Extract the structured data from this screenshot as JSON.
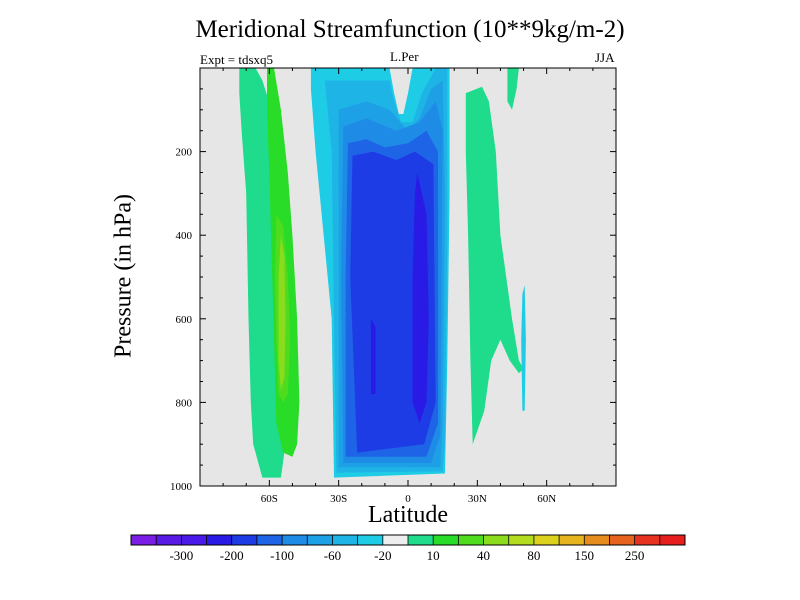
{
  "chart_data": {
    "type": "heatmap",
    "title": "Meridional Streamfunction (10**9kg/m-2)",
    "subtitle_left": "Expt = tdsxq5",
    "subtitle_center": "L.Per",
    "subtitle_right": "JJA",
    "xlabel": "Latitude",
    "ylabel": "Pressure (in hPa)",
    "xlim": [
      -90,
      90
    ],
    "ylim": [
      1000,
      0
    ],
    "x_ticks": [
      {
        "value": -60,
        "label": "60S"
      },
      {
        "value": -30,
        "label": "30S"
      },
      {
        "value": 0,
        "label": "0"
      },
      {
        "value": 30,
        "label": "30N"
      },
      {
        "value": 60,
        "label": "60N"
      }
    ],
    "y_ticks": [
      {
        "value": 200,
        "label": "200"
      },
      {
        "value": 400,
        "label": "400"
      },
      {
        "value": 600,
        "label": "600"
      },
      {
        "value": 800,
        "label": "800"
      },
      {
        "value": 1000,
        "label": "1000"
      }
    ],
    "background_color": "#e6e6e6",
    "colorbar": {
      "colors": [
        "#7a1ee6",
        "#5a1ae6",
        "#4a1ae8",
        "#2a1ae6",
        "#1e3ce6",
        "#1e64e6",
        "#1e8ce6",
        "#1ea0e6",
        "#1eb4e6",
        "#1ecce6",
        "#eeeeee",
        "#1edc8c",
        "#28dc28",
        "#50dc1e",
        "#8cdc1e",
        "#b4dc1e",
        "#dcd21e",
        "#e6b41e",
        "#e68c1e",
        "#e6641e",
        "#e6321e",
        "#e61e1e"
      ],
      "labels": [
        {
          "after_index": 1,
          "label": "-300"
        },
        {
          "after_index": 3,
          "label": "-200"
        },
        {
          "after_index": 5,
          "label": "-100"
        },
        {
          "after_index": 7,
          "label": "-60"
        },
        {
          "after_index": 9,
          "label": "-20"
        },
        {
          "after_index": 11,
          "label": "10"
        },
        {
          "after_index": 13,
          "label": "40"
        },
        {
          "after_index": 15,
          "label": "80"
        },
        {
          "after_index": 17,
          "label": "150"
        },
        {
          "after_index": 19,
          "label": "250"
        }
      ]
    },
    "contours": [
      {
        "name": "sh-cell-outer",
        "color": "#1edc8c",
        "points": [
          [
            -73,
            0
          ],
          [
            -66,
            0
          ],
          [
            -63,
            30
          ],
          [
            -59,
            100
          ],
          [
            -55,
            300
          ],
          [
            -53,
            500
          ],
          [
            -52,
            700
          ],
          [
            -53,
            900
          ],
          [
            -55,
            980
          ],
          [
            -63,
            980
          ],
          [
            -67,
            900
          ],
          [
            -68,
            800
          ],
          [
            -69,
            600
          ],
          [
            -70,
            300
          ],
          [
            -72,
            150
          ],
          [
            -73,
            60
          ]
        ]
      },
      {
        "name": "sh-cell-mid",
        "color": "#28dc28",
        "points": [
          [
            -61,
            0
          ],
          [
            -58,
            0
          ],
          [
            -55,
            100
          ],
          [
            -52,
            250
          ],
          [
            -50,
            400
          ],
          [
            -48,
            600
          ],
          [
            -47,
            800
          ],
          [
            -48,
            900
          ],
          [
            -50,
            930
          ],
          [
            -54,
            920
          ],
          [
            -57,
            850
          ],
          [
            -58,
            650
          ],
          [
            -59,
            450
          ],
          [
            -60,
            250
          ],
          [
            -61,
            100
          ]
        ]
      },
      {
        "name": "sh-cell-inner",
        "color": "#50dc1e",
        "points": [
          [
            -57,
            350
          ],
          [
            -54,
            380
          ],
          [
            -52,
            500
          ],
          [
            -51,
            650
          ],
          [
            -52,
            780
          ],
          [
            -54,
            800
          ],
          [
            -56,
            780
          ],
          [
            -57,
            650
          ],
          [
            -57.5,
            500
          ]
        ]
      },
      {
        "name": "sh-cell-core",
        "color": "#8cdc1e",
        "points": [
          [
            -55,
            400
          ],
          [
            -53.5,
            450
          ],
          [
            -53,
            600
          ],
          [
            -53.5,
            740
          ],
          [
            -55,
            770
          ],
          [
            -56,
            700
          ],
          [
            -56,
            500
          ]
        ]
      },
      {
        "name": "nh-cell-band",
        "color": "#1edc8c",
        "points": [
          [
            25,
            60
          ],
          [
            32,
            45
          ],
          [
            35,
            80
          ],
          [
            38,
            200
          ],
          [
            40,
            400
          ],
          [
            45,
            600
          ],
          [
            48,
            700
          ],
          [
            50,
            720
          ],
          [
            48,
            730
          ],
          [
            44,
            700
          ],
          [
            40,
            650
          ],
          [
            36,
            700
          ],
          [
            33,
            820
          ],
          [
            28,
            900
          ],
          [
            27,
            700
          ],
          [
            26,
            400
          ],
          [
            25,
            200
          ]
        ]
      },
      {
        "name": "nh-cell-top",
        "color": "#1edc8c",
        "points": [
          [
            43,
            0
          ],
          [
            48,
            0
          ],
          [
            47,
            50
          ],
          [
            45,
            100
          ],
          [
            43,
            80
          ]
        ]
      },
      {
        "name": "nh-streak",
        "color": "#1ecce6",
        "points": [
          [
            49.5,
            540
          ],
          [
            50.5,
            520
          ],
          [
            51,
            650
          ],
          [
            50.5,
            820
          ],
          [
            49.5,
            820
          ],
          [
            49,
            650
          ]
        ]
      },
      {
        "name": "ferrel-cyan-1",
        "color": "#1ecce6",
        "points": [
          [
            -42,
            0
          ],
          [
            -8,
            0
          ],
          [
            -6,
            60
          ],
          [
            -4,
            110
          ],
          [
            -2,
            110
          ],
          [
            0,
            60
          ],
          [
            2,
            0
          ],
          [
            18,
            0
          ],
          [
            18,
            300
          ],
          [
            17,
            700
          ],
          [
            16,
            970
          ],
          [
            -32,
            980
          ],
          [
            -33,
            600
          ],
          [
            -40,
            200
          ],
          [
            -42,
            50
          ]
        ]
      },
      {
        "name": "ferrel-cyan-2",
        "color": "#1eb4e6",
        "points": [
          [
            -36,
            30
          ],
          [
            -8,
            30
          ],
          [
            -6,
            80
          ],
          [
            -3,
            130
          ],
          [
            2,
            130
          ],
          [
            6,
            60
          ],
          [
            12,
            0
          ],
          [
            17,
            0
          ],
          [
            17,
            400
          ],
          [
            16,
            900
          ],
          [
            15,
            965
          ],
          [
            -31,
            968
          ],
          [
            -32,
            600
          ],
          [
            -33,
            200
          ]
        ]
      },
      {
        "name": "ferrel-blue-1",
        "color": "#1ea0e6",
        "points": [
          [
            -30,
            100
          ],
          [
            -18,
            80
          ],
          [
            -8,
            100
          ],
          [
            0,
            150
          ],
          [
            5,
            120
          ],
          [
            10,
            50
          ],
          [
            15,
            30
          ],
          [
            16,
            300
          ],
          [
            15,
            850
          ],
          [
            14,
            955
          ],
          [
            -30,
            955
          ],
          [
            -30,
            500
          ]
        ]
      },
      {
        "name": "ferrel-blue-2",
        "color": "#1e8ce6",
        "points": [
          [
            -28,
            140
          ],
          [
            -18,
            120
          ],
          [
            -5,
            150
          ],
          [
            5,
            130
          ],
          [
            12,
            80
          ],
          [
            15,
            150
          ],
          [
            14,
            880
          ],
          [
            10,
            945
          ],
          [
            -28,
            945
          ],
          [
            -29,
            500
          ]
        ]
      },
      {
        "name": "ferrel-blue-3",
        "color": "#1e64e6",
        "points": [
          [
            -26,
            180
          ],
          [
            -18,
            170
          ],
          [
            -10,
            190
          ],
          [
            0,
            180
          ],
          [
            8,
            150
          ],
          [
            13,
            200
          ],
          [
            13,
            850
          ],
          [
            8,
            930
          ],
          [
            -27,
            930
          ],
          [
            -27,
            500
          ]
        ]
      },
      {
        "name": "ferrel-blue-4",
        "color": "#1e3ce6",
        "points": [
          [
            -24,
            210
          ],
          [
            -15,
            200
          ],
          [
            -5,
            220
          ],
          [
            3,
            200
          ],
          [
            11,
            230
          ],
          [
            12,
            800
          ],
          [
            7,
            900
          ],
          [
            -22,
            920
          ],
          [
            -25,
            500
          ]
        ]
      },
      {
        "name": "ferrel-blue-5",
        "color": "#2a1ae6",
        "points": [
          [
            4,
            250
          ],
          [
            8,
            350
          ],
          [
            9,
            600
          ],
          [
            8,
            800
          ],
          [
            5,
            850
          ],
          [
            2,
            800
          ],
          [
            2,
            500
          ],
          [
            3,
            300
          ]
        ]
      },
      {
        "name": "ferrel-blue-6",
        "color": "#2a1ae6",
        "points": [
          [
            -16,
            600
          ],
          [
            -14,
            620
          ],
          [
            -14,
            780
          ],
          [
            -16,
            780
          ]
        ]
      }
    ]
  }
}
